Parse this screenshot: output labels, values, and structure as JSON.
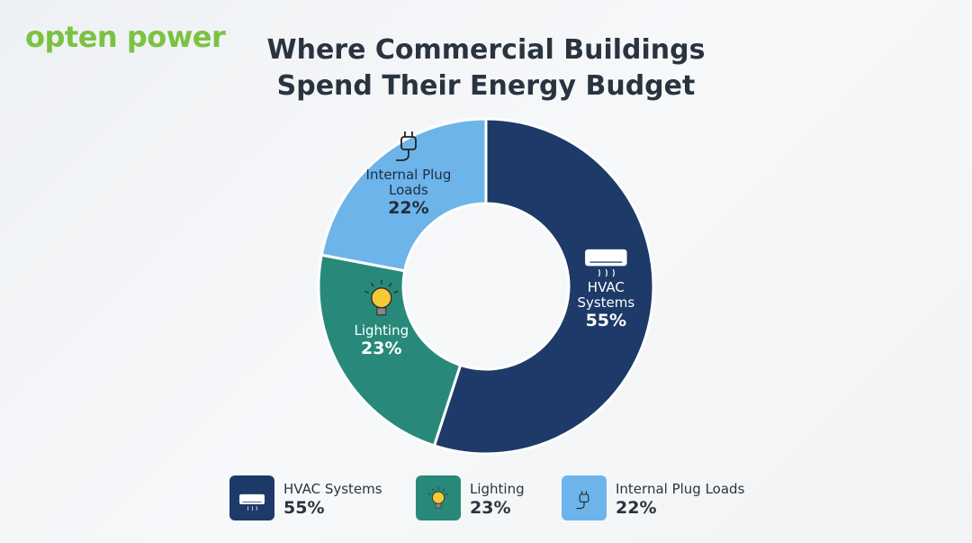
{
  "logo": "opten power",
  "chart_data": {
    "type": "pie",
    "title": "Where Commercial Buildings Spend Their Energy Budget",
    "categories": [
      "HVAC Systems",
      "Lighting",
      "Internal Plug Loads"
    ],
    "values": [
      55,
      23,
      22
    ],
    "value_labels": [
      "55%",
      "23%",
      "22%"
    ],
    "colors": [
      "#1d3a68",
      "#28897a",
      "#6cb4ea"
    ]
  }
}
